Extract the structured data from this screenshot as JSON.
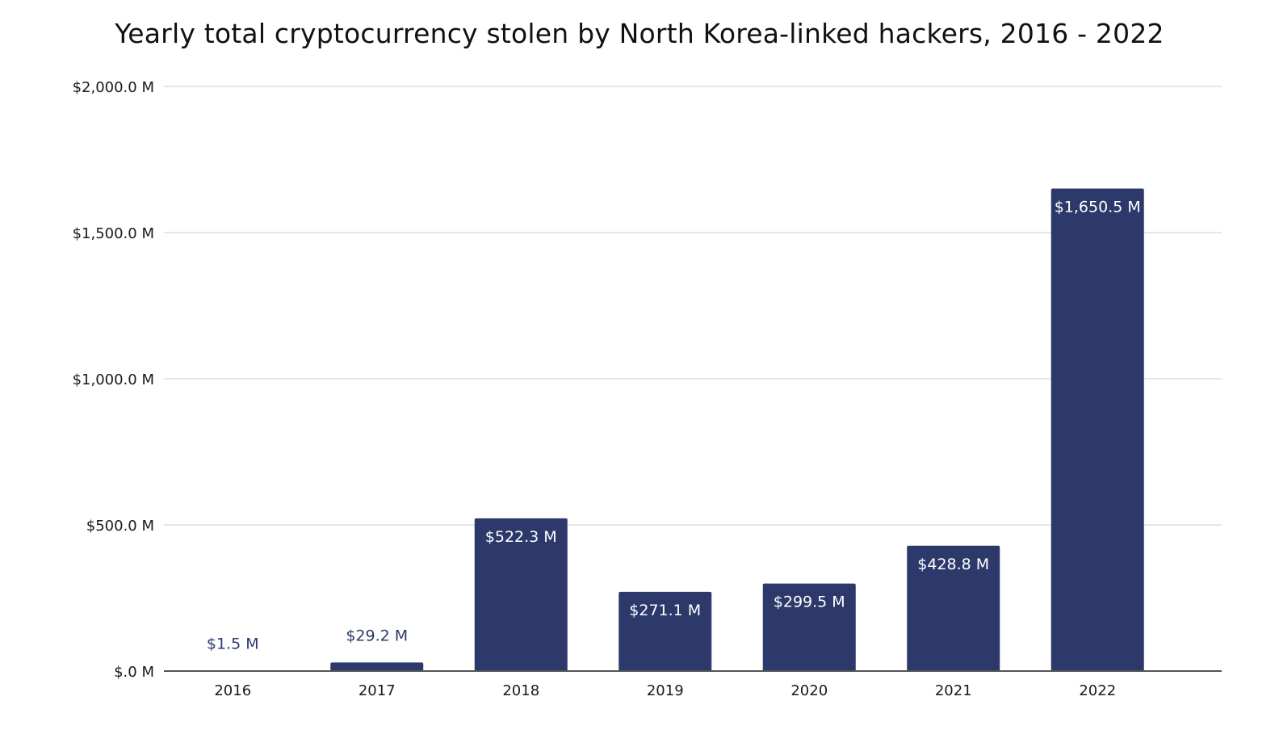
{
  "chart_data": {
    "type": "bar",
    "title": "Yearly total cryptocurrency stolen by North Korea-linked hackers, 2016 - 2022",
    "categories": [
      "2016",
      "2017",
      "2018",
      "2019",
      "2020",
      "2021",
      "2022"
    ],
    "values": [
      1.5,
      29.2,
      522.3,
      271.1,
      299.5,
      428.8,
      1650.5
    ],
    "data_labels": [
      "$1.5 M",
      "$29.2 M",
      "$522.3 M",
      "$271.1 M",
      "$299.5 M",
      "$428.8 M",
      "$1,650.5 M"
    ],
    "ylim": [
      0,
      2000
    ],
    "yticks": [
      0,
      500,
      1000,
      1500,
      2000
    ],
    "ytick_labels": [
      "$.0 M",
      "$500.0 M",
      "$1,000.0 M",
      "$1,500.0 M",
      "$2,000.0 M"
    ],
    "xlabel": "",
    "ylabel": "",
    "grid": true,
    "legend": "none",
    "bar_color": "#2d396b",
    "grid_color": "#dddddd",
    "axis_color": "#555555"
  }
}
